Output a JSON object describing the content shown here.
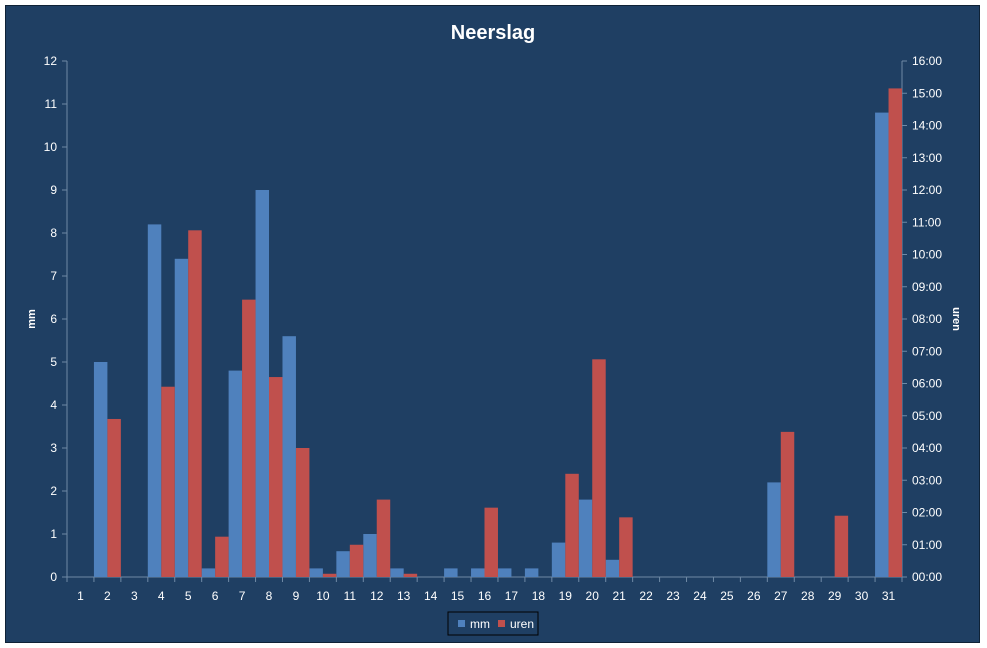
{
  "chart_data": {
    "type": "bar",
    "title": "Neerslag",
    "categories": [
      "1",
      "2",
      "3",
      "4",
      "5",
      "6",
      "7",
      "8",
      "9",
      "10",
      "11",
      "12",
      "13",
      "14",
      "15",
      "16",
      "17",
      "18",
      "19",
      "20",
      "21",
      "22",
      "23",
      "24",
      "25",
      "26",
      "27",
      "28",
      "29",
      "30",
      "31"
    ],
    "series": [
      {
        "name": "mm",
        "axis": "left",
        "color": "#4f81bd",
        "values": [
          0,
          5.0,
          0,
          8.2,
          7.4,
          0.2,
          4.8,
          9.0,
          5.6,
          0.2,
          0.6,
          1.0,
          0.2,
          0,
          0.2,
          0.2,
          0.2,
          0.2,
          0.8,
          1.8,
          0.4,
          0,
          0,
          0,
          0,
          0,
          2.2,
          0,
          0,
          0,
          10.8
        ]
      },
      {
        "name": "uren",
        "axis": "right",
        "unit": "hours",
        "color": "#c0504d",
        "values": [
          0,
          4.9,
          0,
          5.9,
          10.75,
          1.25,
          8.6,
          6.2,
          4.0,
          0.1,
          1.0,
          2.4,
          0.1,
          0,
          0,
          2.15,
          0,
          0,
          3.2,
          6.75,
          1.85,
          0,
          0,
          0,
          0,
          0,
          4.5,
          0,
          1.9,
          0,
          15.15
        ]
      }
    ],
    "y_left": {
      "label": "mm",
      "ylim": [
        0,
        12
      ],
      "ticks": [
        "0",
        "1",
        "2",
        "3",
        "4",
        "5",
        "6",
        "7",
        "8",
        "9",
        "10",
        "11",
        "12"
      ]
    },
    "y_right": {
      "label": "uren",
      "ylim": [
        0,
        16
      ],
      "ticks": [
        "00:00",
        "01:00",
        "02:00",
        "03:00",
        "04:00",
        "05:00",
        "06:00",
        "07:00",
        "08:00",
        "09:00",
        "10:00",
        "11:00",
        "12:00",
        "13:00",
        "14:00",
        "15:00",
        "16:00"
      ]
    },
    "grid": false,
    "legend_position": "bottom",
    "background": "#1f3f63"
  }
}
